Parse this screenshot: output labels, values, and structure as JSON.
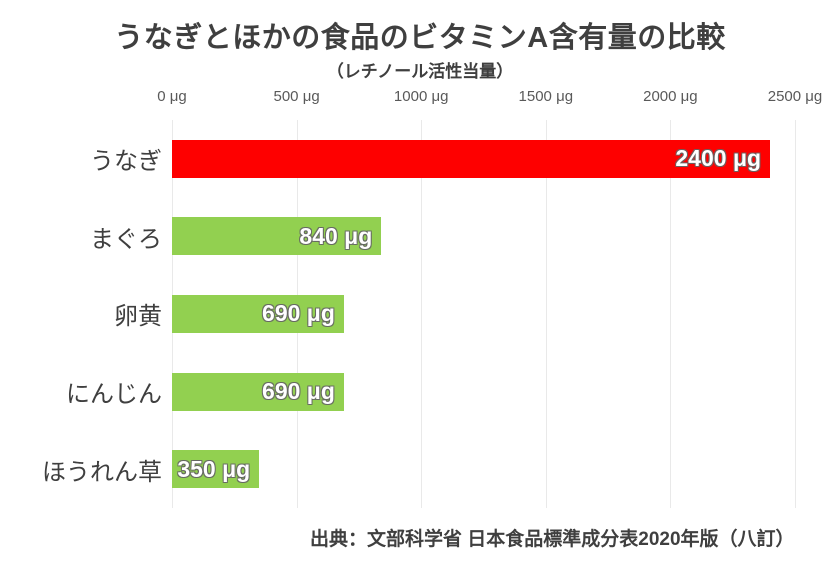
{
  "chart_data": {
    "type": "bar",
    "orientation": "horizontal",
    "title": "うなぎとほかの食品のビタミンA含有量の比較",
    "subtitle": "（レチノール活性当量）",
    "unit": "μg",
    "categories": [
      "うなぎ",
      "まぐろ",
      "卵黄",
      "にんじん",
      "ほうれん草"
    ],
    "values": [
      2400,
      840,
      690,
      690,
      350
    ],
    "value_labels": [
      "2400 μg",
      "840 μg",
      "690 μg",
      "690 μg",
      "350 μg"
    ],
    "bar_colors": [
      "#fe0000",
      "#92d050",
      "#92d050",
      "#92d050",
      "#92d050"
    ],
    "x_ticks": [
      0,
      500,
      1000,
      1500,
      2000,
      2500
    ],
    "x_tick_labels": [
      "0 μg",
      "500 μg",
      "1000 μg",
      "1500 μg",
      "2000 μg",
      "2500 μg"
    ],
    "xlim": [
      0,
      2500
    ],
    "grid": "vertical",
    "legend": "none",
    "highlight_color": "#fe0000",
    "normal_color": "#92d050",
    "grid_color": "#e9e9e9"
  },
  "source": {
    "text": "出典：文部科学省 日本食品標準成分表2020年版（八訂）"
  }
}
